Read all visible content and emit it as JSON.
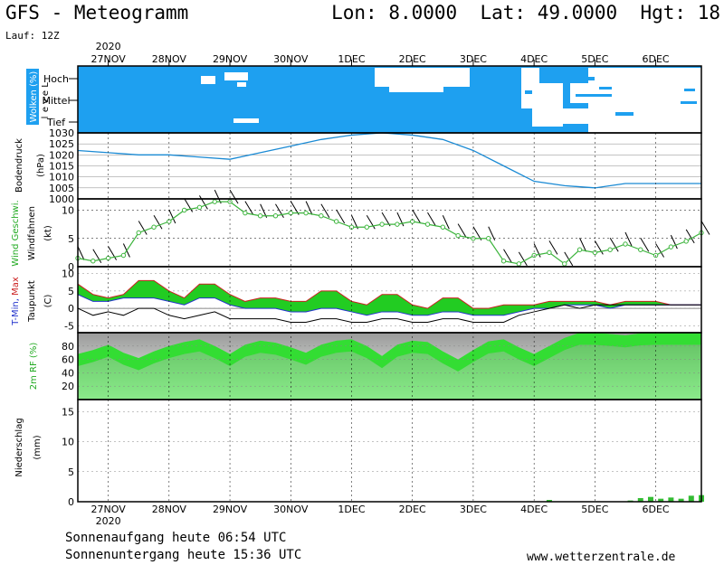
{
  "header": {
    "title": "GFS - Meteogramm",
    "coords": "Lon: 8.0000  Lat: 49.0000  Hgt: 18",
    "run": "Lauf: 12Z"
  },
  "footer": {
    "sunrise": "Sonnenaufgang heute 06:54 UTC",
    "sunset": "Sonnenuntergang heute 15:36 UTC",
    "website": "www.wetterzentrale.de"
  },
  "colors": {
    "cloud": "#1ea0f0",
    "pressure": "#1a8ad4",
    "wind": "#3cb43c",
    "temp_fill": "#22cc22",
    "humidity": "#33dd33",
    "precip": "#33bb33"
  },
  "chart_data": {
    "type": "meteogram",
    "year": "2020",
    "day_labels": [
      "27NOV",
      "28NOV",
      "29NOV",
      "30NOV",
      "1DEC",
      "2DEC",
      "3DEC",
      "4DEC",
      "5DEC",
      "6DEC"
    ],
    "x_hours_start": 0,
    "x_hours_end": 246,
    "panels": {
      "clouds": {
        "label": "Wolken (%)",
        "level_label": "Level",
        "levels": [
          "Hoch",
          "Mittel",
          "Tief"
        ]
      },
      "pressure": {
        "label": "Bodendruck",
        "unit": "(hPa)",
        "ylim": [
          1000,
          1030
        ],
        "yticks": [
          1000,
          1005,
          1010,
          1015,
          1020,
          1025,
          1030
        ],
        "hours": [
          0,
          12,
          24,
          36,
          48,
          60,
          72,
          84,
          96,
          108,
          120,
          132,
          144,
          156,
          168,
          180,
          192,
          204,
          216,
          228,
          240,
          246
        ],
        "values": [
          1022,
          1021,
          1020,
          1020,
          1019,
          1018,
          1021,
          1024,
          1027,
          1029,
          1030,
          1029,
          1027,
          1022,
          1015,
          1008,
          1006,
          1005,
          1007,
          1007,
          1007,
          1007
        ]
      },
      "wind": {
        "label": "Wind Geschwi.",
        "barb_label": "Windfahnen",
        "unit": "(kt)",
        "ylim": [
          0,
          12
        ],
        "yticks": [
          0,
          5,
          10
        ],
        "hours": [
          0,
          6,
          12,
          18,
          24,
          30,
          36,
          42,
          48,
          54,
          60,
          66,
          72,
          78,
          84,
          90,
          96,
          102,
          108,
          114,
          120,
          126,
          132,
          138,
          144,
          150,
          156,
          162,
          168,
          174,
          180,
          186,
          192,
          198,
          204,
          210,
          216,
          222,
          228,
          234,
          240,
          246
        ],
        "values": [
          1.5,
          1,
          1.5,
          2,
          6,
          7,
          8,
          10,
          10.5,
          11.5,
          11.5,
          9.5,
          9,
          9,
          9.5,
          9.5,
          9,
          8,
          7,
          7,
          7.5,
          7.5,
          8,
          7.5,
          7,
          5.5,
          5,
          5,
          1,
          0.5,
          2,
          2.5,
          0.5,
          3,
          2.5,
          3,
          4,
          3,
          2,
          3.5,
          4.5,
          6
        ]
      },
      "temperature": {
        "label_tmin": "T-Min,",
        "label_tmax": "Max",
        "dew_label": "Taupunkt",
        "unit": "(C)",
        "ylim": [
          -7,
          12
        ],
        "yticks": [
          -5,
          0,
          5,
          10
        ],
        "hours": [
          0,
          6,
          12,
          18,
          24,
          30,
          36,
          42,
          48,
          54,
          60,
          66,
          72,
          78,
          84,
          90,
          96,
          102,
          108,
          114,
          120,
          126,
          132,
          138,
          144,
          150,
          156,
          162,
          168,
          174,
          180,
          186,
          192,
          198,
          204,
          210,
          216,
          222,
          228,
          234,
          240,
          246
        ],
        "tmax": [
          7,
          4,
          3,
          4,
          8,
          8,
          5,
          3,
          7,
          7,
          4,
          2,
          3,
          3,
          2,
          2,
          5,
          5,
          2,
          1,
          4,
          4,
          1,
          0,
          3,
          3,
          0,
          0,
          1,
          1,
          1,
          2,
          2,
          2,
          2,
          1,
          2,
          2,
          2,
          1,
          1,
          1
        ],
        "tmin": [
          4,
          2,
          2,
          3,
          3,
          3,
          2,
          1,
          3,
          3,
          1,
          0,
          0,
          0,
          -1,
          -1,
          0,
          0,
          -1,
          -2,
          -1,
          -1,
          -2,
          -2,
          -1,
          -1,
          -2,
          -2,
          -2,
          -1,
          0,
          0,
          1,
          1,
          1,
          0,
          1,
          1,
          1,
          1,
          1,
          1
        ],
        "dewpoint": [
          0,
          -2,
          -1,
          -2,
          0,
          0,
          -2,
          -3,
          -2,
          -1,
          -3,
          -3,
          -3,
          -3,
          -4,
          -4,
          -3,
          -3,
          -4,
          -4,
          -3,
          -3,
          -4,
          -4,
          -3,
          -3,
          -4,
          -4,
          -4,
          -2,
          -1,
          0,
          1,
          0,
          1,
          1,
          1,
          1,
          1,
          1,
          1,
          1
        ]
      },
      "humidity": {
        "label": "2m RF (%)",
        "ylim": [
          0,
          100
        ],
        "yticks": [
          20,
          40,
          60,
          80
        ],
        "hours": [
          0,
          6,
          12,
          18,
          24,
          30,
          36,
          42,
          48,
          54,
          60,
          66,
          72,
          78,
          84,
          90,
          96,
          102,
          108,
          114,
          120,
          126,
          132,
          138,
          144,
          150,
          156,
          162,
          168,
          174,
          180,
          186,
          192,
          198,
          204,
          210,
          216,
          222,
          228,
          234,
          240,
          246
        ],
        "values": [
          68,
          74,
          82,
          70,
          62,
          72,
          80,
          86,
          90,
          80,
          68,
          82,
          88,
          85,
          78,
          70,
          82,
          88,
          90,
          80,
          65,
          82,
          88,
          86,
          72,
          60,
          74,
          87,
          90,
          78,
          68,
          80,
          92,
          100,
          100,
          98,
          96,
          99,
          100,
          100,
          100,
          100
        ]
      },
      "precipitation": {
        "label": "Niederschlag",
        "unit": "(mm)",
        "ylim": [
          0,
          17
        ],
        "yticks": [
          0,
          5,
          10,
          15
        ],
        "hours": [
          186,
          218,
          222,
          226,
          230,
          234,
          238,
          242,
          246
        ],
        "values": [
          0.3,
          0.2,
          0.6,
          0.8,
          0.5,
          0.7,
          0.5,
          1.0,
          1.1
        ]
      }
    }
  }
}
